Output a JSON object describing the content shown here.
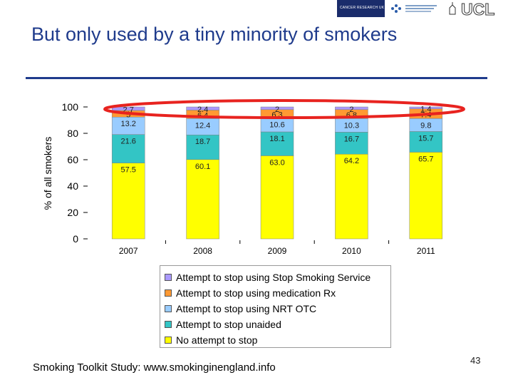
{
  "slide": {
    "title": "But only used by a tiny minority of smokers",
    "source": "Smoking Toolkit Study: www.smokinginengland.info",
    "page_number": "43",
    "logos": {
      "cruk": "CANCER RESEARCH UK",
      "ucl": "UCL"
    }
  },
  "colors": {
    "title": "#1f3b8c",
    "highlight": "#e8231f",
    "segments": [
      "#ffff00",
      "#33c5c5",
      "#99ccff",
      "#ff9933",
      "#aa99ff"
    ]
  },
  "chart_data": {
    "type": "bar",
    "stacked": true,
    "categories": [
      "2007",
      "2008",
      "2009",
      "2010",
      "2011"
    ],
    "ylabel": "% of all smokers",
    "ylim": [
      0,
      100
    ],
    "yticks": [
      "0",
      "20",
      "40",
      "60",
      "80",
      "100"
    ],
    "legend_position": "bottom",
    "series": [
      {
        "name": "No attempt to stop",
        "values": [
          57.5,
          60.1,
          63.0,
          64.2,
          65.7
        ],
        "labels": [
          "57.5",
          "60.1",
          "63.0",
          "64.2",
          "65.7"
        ]
      },
      {
        "name": "Attempt to stop unaided",
        "values": [
          21.6,
          18.7,
          18.1,
          16.7,
          15.7
        ],
        "labels": [
          "21.6",
          "18.7",
          "18.1",
          "16.7",
          "15.7"
        ]
      },
      {
        "name": "Attempt to stop using NRT OTC",
        "values": [
          13.2,
          12.4,
          10.6,
          10.3,
          9.8
        ],
        "labels": [
          "13.2",
          "12.4",
          "10.6",
          "10.3",
          "9.8"
        ]
      },
      {
        "name": "Attempt to stop using medication Rx",
        "values": [
          5.0,
          6.4,
          6.3,
          6.8,
          7.4
        ],
        "labels": [
          "5",
          "6.4",
          "6.3",
          "6.8",
          "7.4"
        ]
      },
      {
        "name": "Attempt to stop using Stop Smoking Service",
        "values": [
          2.7,
          2.4,
          2.0,
          2.0,
          1.4
        ],
        "labels": [
          "2.7",
          "2.4",
          "2",
          "2",
          "1.4"
        ]
      }
    ],
    "legend_order": [
      4,
      3,
      2,
      1,
      0
    ]
  }
}
